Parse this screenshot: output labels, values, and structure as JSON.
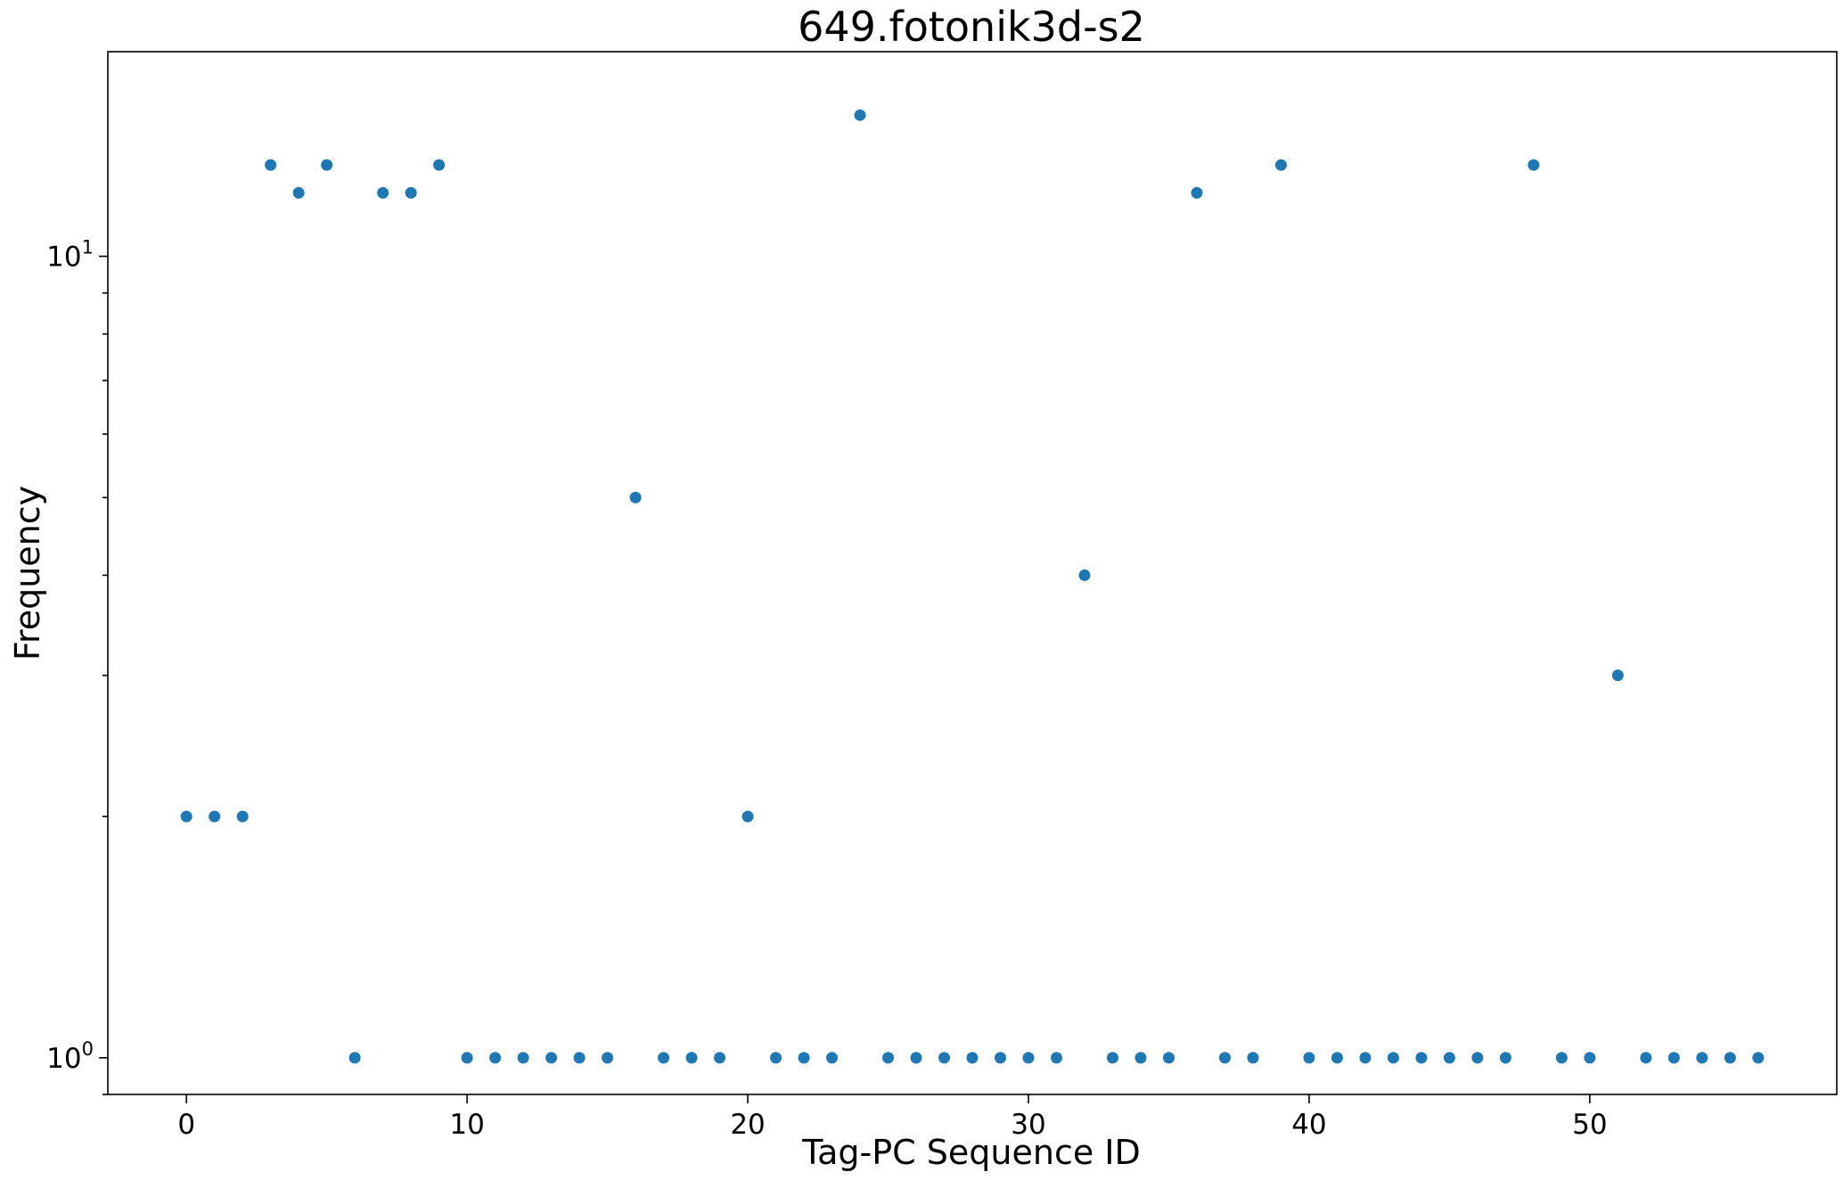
{
  "chart_data": {
    "type": "scatter",
    "title": "649.fotonik3d-s2",
    "xlabel": "Tag-PC Sequence ID",
    "ylabel": "Frequency",
    "xlim": [
      -2.8,
      58.8
    ],
    "ylim": [
      0.9,
      18.0
    ],
    "yscale": "log",
    "grid": false,
    "marker_color": "#1f77b4",
    "x_ticks": [
      0,
      10,
      20,
      30,
      40,
      50
    ],
    "y_ticks": [
      {
        "value": 1,
        "base": "10",
        "exp": "0"
      },
      {
        "value": 10,
        "base": "10",
        "exp": "1"
      }
    ],
    "x": [
      0,
      1,
      2,
      3,
      4,
      5,
      6,
      7,
      8,
      9,
      10,
      11,
      12,
      13,
      14,
      15,
      16,
      17,
      18,
      19,
      20,
      21,
      22,
      23,
      24,
      25,
      26,
      27,
      28,
      29,
      30,
      31,
      32,
      33,
      34,
      35,
      36,
      37,
      38,
      39,
      40,
      41,
      42,
      43,
      44,
      45,
      46,
      47,
      48,
      49,
      50,
      51,
      52,
      53,
      54,
      55,
      56
    ],
    "y": [
      2,
      2,
      2,
      13,
      12,
      13,
      1,
      12,
      12,
      13,
      1,
      1,
      1,
      1,
      1,
      1,
      5,
      1,
      1,
      1,
      2,
      1,
      1,
      1,
      15,
      1,
      1,
      1,
      1,
      1,
      1,
      1,
      4,
      1,
      1,
      1,
      12,
      1,
      1,
      13,
      1,
      1,
      1,
      1,
      1,
      1,
      1,
      1,
      13,
      1,
      1,
      3,
      1,
      1,
      1,
      1,
      1
    ]
  }
}
